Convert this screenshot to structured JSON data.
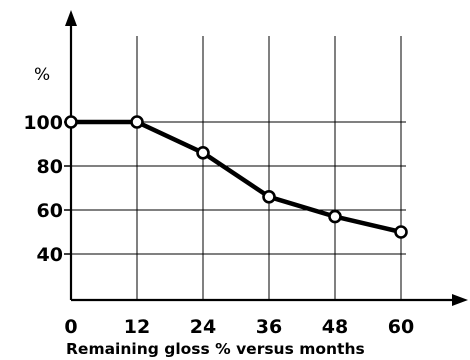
{
  "chart_data": {
    "type": "line",
    "title": "",
    "caption": "Remaining gloss % versus months",
    "xlabel": "",
    "ylabel": "%",
    "x": [
      0,
      12,
      24,
      36,
      48,
      60
    ],
    "series": [
      {
        "values": [
          100,
          100,
          86,
          66,
          57,
          50
        ]
      }
    ],
    "xticks": [
      "0",
      "12",
      "24",
      "36",
      "48",
      "60"
    ],
    "yticks": [
      "40",
      "60",
      "80",
      "100"
    ],
    "ytick_values": [
      40,
      60,
      80,
      100
    ],
    "xlim": [
      0,
      60
    ],
    "ylim": [
      40,
      100
    ],
    "grid": true,
    "legend": "none",
    "line_color": "#000000",
    "marker_fill": "#ffffff"
  }
}
